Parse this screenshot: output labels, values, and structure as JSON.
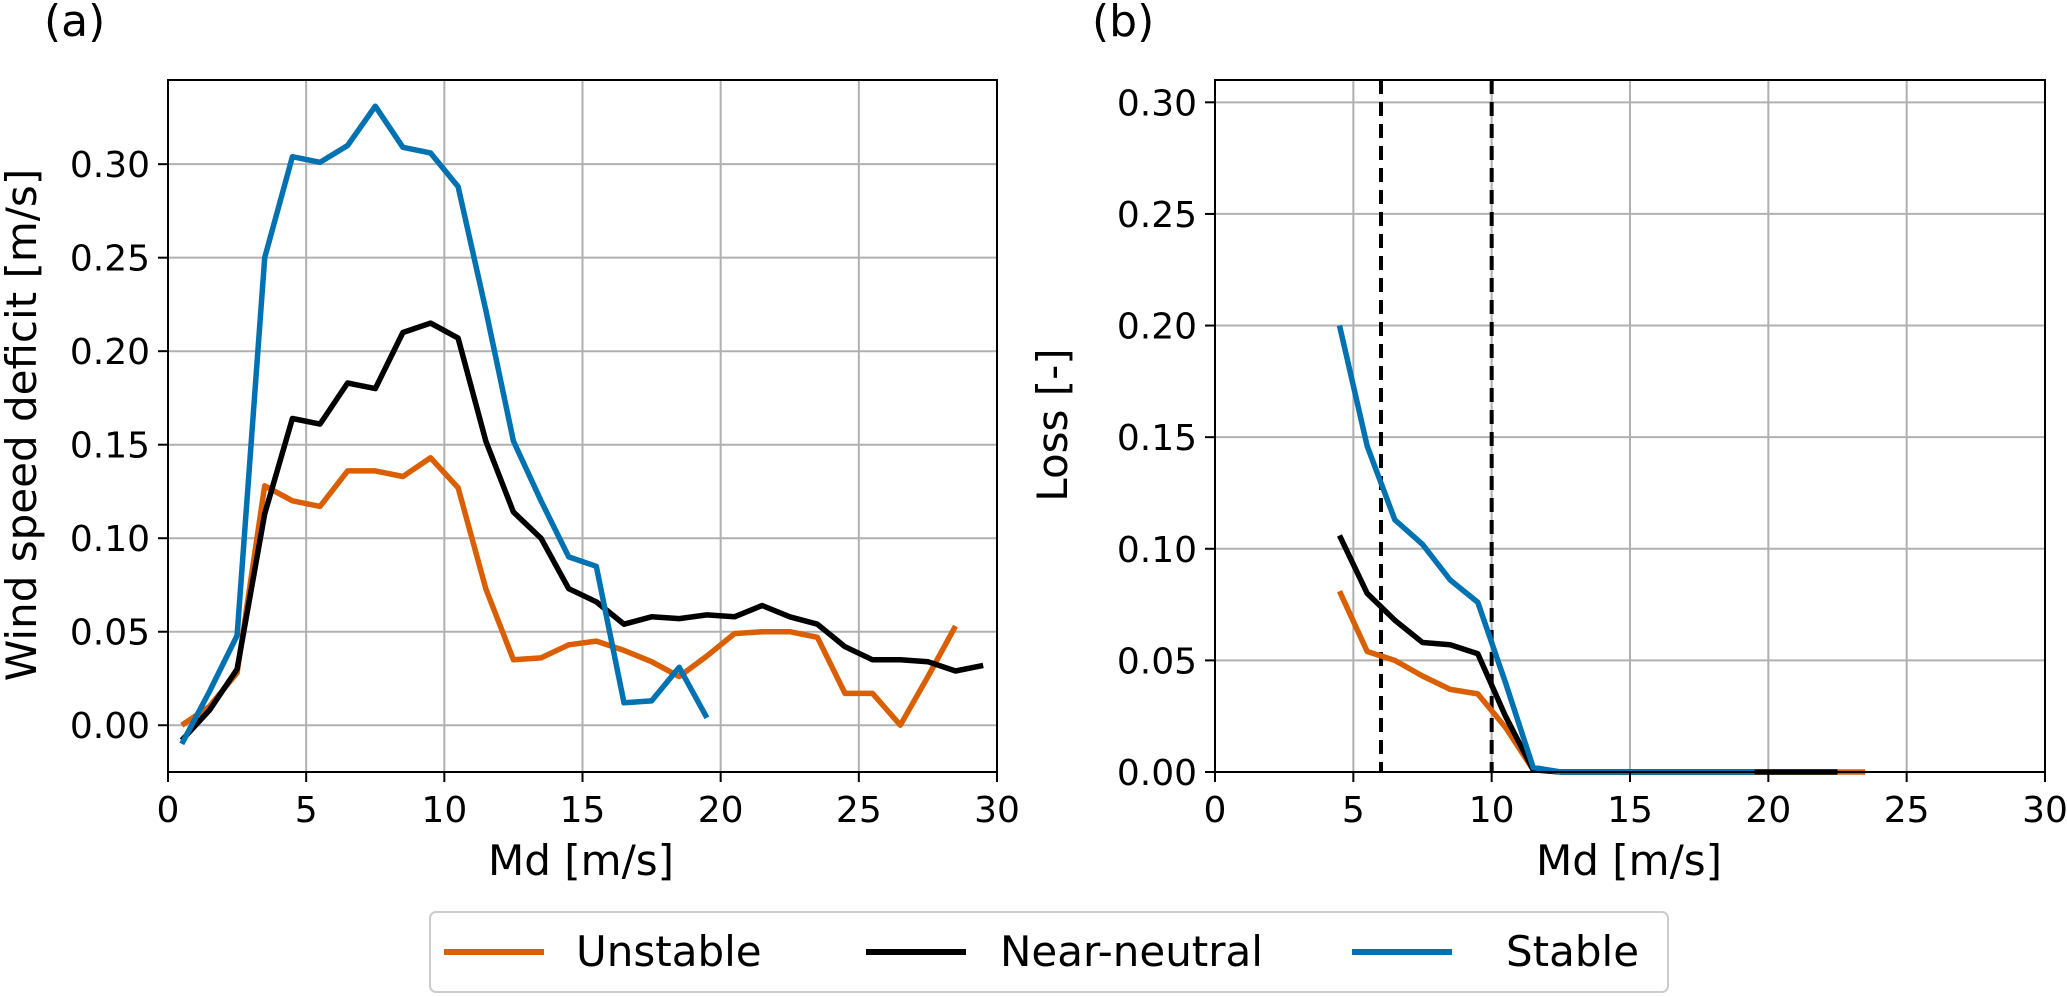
{
  "legend": {
    "entries": [
      {
        "label": "Unstable",
        "color": "#d95f02"
      },
      {
        "label": "Near-neutral",
        "color": "#000000"
      },
      {
        "label": "Stable",
        "color": "#0072b2"
      }
    ],
    "placement": "bottom-center"
  },
  "chart_data": [
    {
      "panel_label": "(a)",
      "type": "line",
      "xlabel": "Md [m/s]",
      "ylabel": "Wind speed deficit [m/s]",
      "xlim": [
        0,
        30
      ],
      "ylim": [
        -0.025,
        0.345
      ],
      "xticks": [
        0,
        5,
        10,
        15,
        20,
        25,
        30
      ],
      "xtick_labels": [
        "0",
        "5",
        "10",
        "15",
        "20",
        "25",
        "30"
      ],
      "yticks": [
        0.0,
        0.05,
        0.1,
        0.15,
        0.2,
        0.25,
        0.3
      ],
      "ytick_labels": [
        "0.00",
        "0.05",
        "0.10",
        "0.15",
        "0.20",
        "0.25",
        "0.30"
      ],
      "grid": true,
      "vlines": [],
      "series": [
        {
          "name": "Unstable",
          "color": "#d95f02",
          "x": [
            0.5,
            1.5,
            2.5,
            3.5,
            4.5,
            5.5,
            6.5,
            7.5,
            8.5,
            9.5,
            10.5,
            11.5,
            12.5,
            13.5,
            14.5,
            15.5,
            16.5,
            17.5,
            18.5,
            19.5,
            20.5,
            21.5,
            22.5,
            23.5,
            24.5,
            25.5,
            26.5,
            27.5,
            28.5
          ],
          "y": [
            0.0,
            0.01,
            0.028,
            0.128,
            0.12,
            0.117,
            0.136,
            0.136,
            0.133,
            0.143,
            0.127,
            0.073,
            0.035,
            0.036,
            0.043,
            0.045,
            0.04,
            0.034,
            0.026,
            0.037,
            0.049,
            0.05,
            0.05,
            0.047,
            0.017,
            0.017,
            0.0,
            0.026,
            0.053
          ]
        },
        {
          "name": "Near-neutral",
          "color": "#000000",
          "x": [
            0.5,
            1.5,
            2.5,
            3.5,
            4.5,
            5.5,
            6.5,
            7.5,
            8.5,
            9.5,
            10.5,
            11.5,
            12.5,
            13.5,
            14.5,
            15.5,
            16.5,
            17.5,
            18.5,
            19.5,
            20.5,
            21.5,
            22.5,
            23.5,
            24.5,
            25.5,
            26.5,
            27.5,
            28.5,
            29.5
          ],
          "y": [
            -0.008,
            0.008,
            0.03,
            0.113,
            0.164,
            0.161,
            0.183,
            0.18,
            0.21,
            0.215,
            0.207,
            0.152,
            0.114,
            0.1,
            0.073,
            0.066,
            0.054,
            0.058,
            0.057,
            0.059,
            0.058,
            0.064,
            0.058,
            0.054,
            0.042,
            0.035,
            0.035,
            0.034,
            0.029,
            0.032
          ]
        },
        {
          "name": "Stable",
          "color": "#0072b2",
          "x": [
            0.5,
            1.5,
            2.5,
            3.5,
            4.5,
            5.5,
            6.5,
            7.5,
            8.5,
            9.5,
            10.5,
            11.5,
            12.5,
            13.5,
            14.5,
            15.5,
            16.5,
            17.5,
            18.5,
            19.5
          ],
          "y": [
            -0.01,
            0.018,
            0.048,
            0.25,
            0.304,
            0.301,
            0.31,
            0.331,
            0.309,
            0.306,
            0.288,
            0.222,
            0.152,
            0.12,
            0.09,
            0.085,
            0.012,
            0.013,
            0.031,
            0.004
          ]
        }
      ]
    },
    {
      "panel_label": "(b)",
      "type": "line",
      "xlabel": "Md [m/s]",
      "ylabel": "Loss [-]",
      "xlim": [
        0,
        30
      ],
      "ylim": [
        0,
        0.31
      ],
      "xticks": [
        0,
        5,
        10,
        15,
        20,
        25,
        30
      ],
      "xtick_labels": [
        "0",
        "5",
        "10",
        "15",
        "20",
        "25",
        "30"
      ],
      "yticks": [
        0.0,
        0.05,
        0.1,
        0.15,
        0.2,
        0.25,
        0.3
      ],
      "ytick_labels": [
        "0.00",
        "0.05",
        "0.10",
        "0.15",
        "0.20",
        "0.25",
        "0.30"
      ],
      "grid": true,
      "vlines": [
        6,
        10
      ],
      "series": [
        {
          "name": "Unstable",
          "color": "#d95f02",
          "x": [
            4.5,
            5.5,
            6.5,
            7.5,
            8.5,
            9.5,
            10.5,
            11.5,
            12.5,
            13.5,
            14.5,
            15.5,
            16.5,
            17.5,
            18.5,
            19.5,
            20.5,
            21.5,
            22.5,
            23.5
          ],
          "y": [
            0.081,
            0.054,
            0.05,
            0.043,
            0.037,
            0.035,
            0.02,
            0.001,
            0.0,
            0.0,
            0.0,
            0.0,
            0.0,
            0.0,
            0.0,
            0.0,
            0.0,
            0.0,
            0.0,
            0.0
          ]
        },
        {
          "name": "Near-neutral",
          "color": "#000000",
          "x": [
            4.5,
            5.5,
            6.5,
            7.5,
            8.5,
            9.5,
            10.5,
            11.5,
            12.5,
            13.5,
            14.5,
            15.5,
            16.5,
            17.5,
            18.5,
            19.5,
            20.5,
            21.5,
            22.5
          ],
          "y": [
            0.106,
            0.08,
            0.068,
            0.058,
            0.057,
            0.053,
            0.025,
            0.001,
            0.0,
            0.0,
            0.0,
            0.0,
            0.0,
            0.0,
            0.0,
            0.0,
            0.0,
            0.0,
            0.0
          ]
        },
        {
          "name": "Stable",
          "color": "#0072b2",
          "x": [
            4.5,
            5.5,
            6.5,
            7.5,
            8.5,
            9.5,
            10.5,
            11.5,
            12.5,
            13.5,
            14.5,
            15.5,
            16.5,
            17.5,
            18.5,
            19.5
          ],
          "y": [
            0.2,
            0.146,
            0.113,
            0.102,
            0.086,
            0.076,
            0.04,
            0.002,
            0.0,
            0.0,
            0.0,
            0.0,
            0.0,
            0.0,
            0.0,
            0.0
          ]
        }
      ]
    }
  ]
}
